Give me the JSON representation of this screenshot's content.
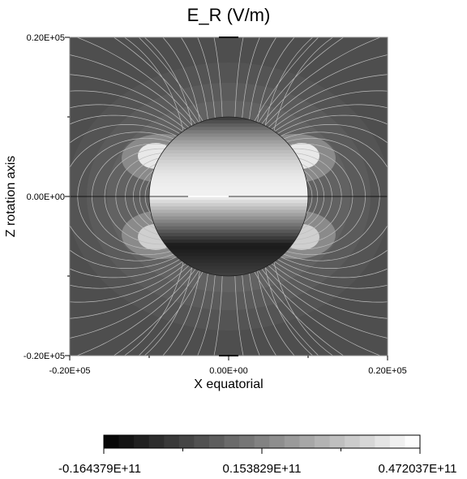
{
  "chart_data": {
    "type": "heatmap",
    "title": "E_R (V/m)",
    "xlabel": "X equatorial",
    "ylabel": "Z rotation axis",
    "xlim": [
      -20000,
      20000
    ],
    "ylim": [
      -20000,
      20000
    ],
    "x_ticks": [
      "-0.20E+05",
      "0.00E+00",
      "0.20E+05"
    ],
    "y_ticks": [
      "0.20E+05",
      "0.00E+00",
      "-0.20E+05"
    ],
    "sphere_radius": 10000,
    "colorbar": {
      "min": -16437900000,
      "max": 47203700000,
      "labels": [
        "-0.164379E+11",
        "0.153829E+11",
        "0.472037E+11"
      ],
      "levels": 21
    },
    "grid": false,
    "legend": "colorbar-bottom"
  }
}
